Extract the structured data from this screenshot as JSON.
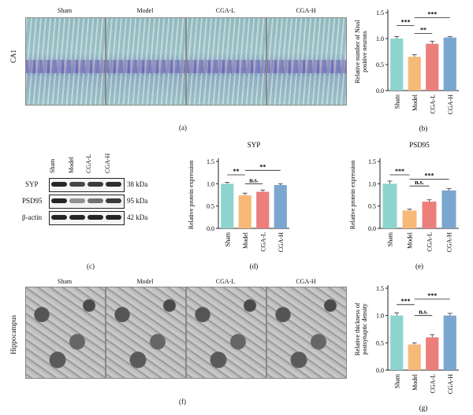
{
  "panel_a": {
    "groups": [
      "Sham",
      "Model",
      "CGA-L",
      "CGA-H"
    ],
    "row_label": "CA1",
    "letter": "(a)"
  },
  "panel_c": {
    "groups": [
      "Sham",
      "Model",
      "CGA-L",
      "CGA-H"
    ],
    "rows": [
      {
        "protein": "SYP",
        "kda": "38 kDa",
        "band_intensity": [
          0.95,
          0.8,
          0.85,
          0.92
        ]
      },
      {
        "protein": "PSD95",
        "kda": "95 kDa",
        "band_intensity": [
          0.95,
          0.45,
          0.6,
          0.85
        ]
      },
      {
        "protein": "β-actin",
        "kda": "42 kDa",
        "band_intensity": [
          0.95,
          0.95,
          0.95,
          0.95
        ]
      }
    ],
    "letter": "(c)"
  },
  "panel_f": {
    "groups": [
      "Sham",
      "Model",
      "CGA-L",
      "CGA-H"
    ],
    "row_label": "Hippocampus",
    "letter": "(f)"
  },
  "colors": {
    "Sham": "#8fd3cf",
    "Model": "#f7b977",
    "CGA-L": "#ec7f7b",
    "CGA-H": "#7aa6d0",
    "axis": "#222222"
  },
  "chart_data": [
    {
      "id": "b",
      "type": "bar",
      "letter": "(b)",
      "title": "",
      "ylabel": "Relative number of Nissl positive neurons",
      "categories": [
        "Sham",
        "Model",
        "CGA-L",
        "CGA-H"
      ],
      "values": [
        1.0,
        0.65,
        0.9,
        1.02
      ],
      "errors": [
        0.04,
        0.04,
        0.05,
        0.02
      ],
      "ylim": [
        0.0,
        1.5
      ],
      "yticks": [
        "0.0",
        "0.5",
        "1.0",
        "1.5"
      ],
      "significance": [
        {
          "from": 0,
          "to": 1,
          "label": "***",
          "level": 1.25
        },
        {
          "from": 1,
          "to": 2,
          "label": "**",
          "level": 1.1
        },
        {
          "from": 1,
          "to": 3,
          "label": "***",
          "level": 1.4
        }
      ]
    },
    {
      "id": "d",
      "type": "bar",
      "letter": "(d)",
      "title": "SYP",
      "ylabel": "Relative protein expression",
      "categories": [
        "Sham",
        "Model",
        "CGA-L",
        "CGA-H"
      ],
      "values": [
        1.0,
        0.74,
        0.82,
        0.97
      ],
      "errors": [
        0.03,
        0.05,
        0.04,
        0.03
      ],
      "ylim": [
        0.0,
        1.5
      ],
      "yticks": [
        "0.0",
        "0.5",
        "1.0",
        "1.5"
      ],
      "significance": [
        {
          "from": 0,
          "to": 1,
          "label": "**",
          "level": 1.2
        },
        {
          "from": 1,
          "to": 2,
          "label": "n.s.",
          "level": 1.0
        },
        {
          "from": 1,
          "to": 3,
          "label": "**",
          "level": 1.3
        }
      ]
    },
    {
      "id": "e",
      "type": "bar",
      "letter": "(e)",
      "title": "PSD95",
      "ylabel": "Relative protein expression",
      "categories": [
        "Sham",
        "Model",
        "CGA-L",
        "CGA-H"
      ],
      "values": [
        1.0,
        0.4,
        0.6,
        0.85
      ],
      "errors": [
        0.06,
        0.03,
        0.04,
        0.04
      ],
      "ylim": [
        0.0,
        1.5
      ],
      "yticks": [
        "0.0",
        "0.5",
        "1.0",
        "1.5"
      ],
      "significance": [
        {
          "from": 0,
          "to": 1,
          "label": "***",
          "level": 1.2
        },
        {
          "from": 1,
          "to": 2,
          "label": "n.s.",
          "level": 0.95
        },
        {
          "from": 1,
          "to": 3,
          "label": "***",
          "level": 1.1
        }
      ]
    },
    {
      "id": "g",
      "type": "bar",
      "letter": "(g)",
      "title": "",
      "ylabel": "Relative thickness of postsynaptic density",
      "categories": [
        "Sham",
        "Model",
        "CGA-L",
        "CGA-H"
      ],
      "values": [
        1.0,
        0.47,
        0.6,
        1.0
      ],
      "errors": [
        0.05,
        0.03,
        0.05,
        0.04
      ],
      "ylim": [
        0.0,
        1.5
      ],
      "yticks": [
        "0.0",
        "0.5",
        "1.0",
        "1.5"
      ],
      "significance": [
        {
          "from": 0,
          "to": 1,
          "label": "***",
          "level": 1.2
        },
        {
          "from": 1,
          "to": 2,
          "label": "n.s.",
          "level": 1.0
        },
        {
          "from": 1,
          "to": 3,
          "label": "***",
          "level": 1.3
        }
      ]
    }
  ]
}
